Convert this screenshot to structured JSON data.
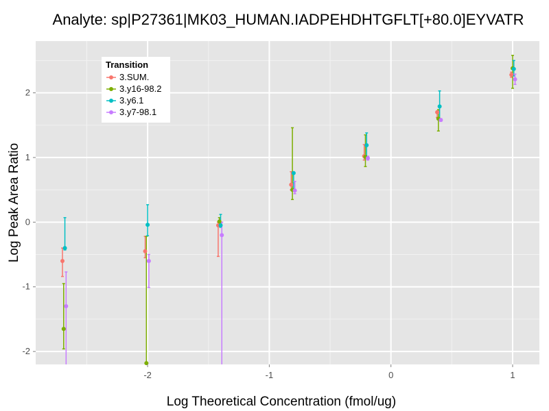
{
  "chart_data": {
    "type": "scatter",
    "title": "Analyte: sp|P27361|MK03_HUMAN.IADPEHDHTGFLT[+80.0]EYVATR",
    "xlabel": "Log Theoretical Concentration (fmol/ug)",
    "ylabel": "Log Peak Area Ratio",
    "xlim": [
      -2.92,
      1.22
    ],
    "ylim": [
      -2.2,
      2.8
    ],
    "x_ticks": [
      -2,
      -1,
      0,
      1
    ],
    "x_tick_labels": [
      "-2",
      "-1",
      "0",
      "1"
    ],
    "y_ticks": [
      -2,
      -1,
      0,
      1,
      2
    ],
    "y_tick_labels": [
      "-2",
      "-1",
      "0",
      "1",
      "2"
    ],
    "grid": true,
    "legend": {
      "title": "Transition",
      "position": "top-left"
    },
    "series": [
      {
        "name": "3.SUM.",
        "color": "#F8766D",
        "points": [
          {
            "x": -2.7,
            "y": -0.6,
            "ymin": -0.84,
            "ymax": -0.4
          },
          {
            "x": -2.02,
            "y": -0.45,
            "ymin": -0.55,
            "ymax": -0.22
          },
          {
            "x": -1.42,
            "y": -0.05,
            "ymin": -0.53,
            "ymax": 0.0
          },
          {
            "x": -0.82,
            "y": 0.58,
            "ymin": 0.5,
            "ymax": 0.78
          },
          {
            "x": -0.22,
            "y": 1.02,
            "ymin": 0.96,
            "ymax": 1.2
          },
          {
            "x": 0.38,
            "y": 1.7,
            "ymin": 1.62,
            "ymax": 1.72
          },
          {
            "x": 0.99,
            "y": 2.28,
            "ymin": 2.24,
            "ymax": 2.32
          }
        ]
      },
      {
        "name": "3.y16-98.2",
        "color": "#7CAE00",
        "points": [
          {
            "x": -2.69,
            "y": -1.65,
            "ymin": -1.96,
            "ymax": -0.95
          },
          {
            "x": -2.01,
            "y": -2.18,
            "ymin": -2.2,
            "ymax": -0.22
          },
          {
            "x": -1.41,
            "y": 0.01,
            "ymin": -0.04,
            "ymax": 0.07
          },
          {
            "x": -0.81,
            "y": 0.5,
            "ymin": 0.35,
            "ymax": 1.46
          },
          {
            "x": -0.21,
            "y": 1.01,
            "ymin": 0.86,
            "ymax": 1.35
          },
          {
            "x": 0.39,
            "y": 1.6,
            "ymin": 1.41,
            "ymax": 1.74
          },
          {
            "x": 1.0,
            "y": 2.38,
            "ymin": 2.07,
            "ymax": 2.58
          }
        ]
      },
      {
        "name": "3.y6.1",
        "color": "#00BFC4",
        "points": [
          {
            "x": -2.68,
            "y": -0.4,
            "ymin": -0.43,
            "ymax": 0.07
          },
          {
            "x": -2.0,
            "y": -0.04,
            "ymin": -0.21,
            "ymax": 0.27
          },
          {
            "x": -1.4,
            "y": -0.05,
            "ymin": -0.08,
            "ymax": 0.12
          },
          {
            "x": -0.8,
            "y": 0.76,
            "ymin": 0.48,
            "ymax": 0.77
          },
          {
            "x": -0.2,
            "y": 1.19,
            "ymin": 0.99,
            "ymax": 1.38
          },
          {
            "x": 0.4,
            "y": 1.79,
            "ymin": 1.59,
            "ymax": 2.03
          },
          {
            "x": 1.01,
            "y": 2.37,
            "ymin": 2.26,
            "ymax": 2.5
          }
        ]
      },
      {
        "name": "3.y7-98.1",
        "color": "#C77CFF",
        "points": [
          {
            "x": -2.67,
            "y": -1.3,
            "ymin": -2.2,
            "ymax": -0.77
          },
          {
            "x": -1.99,
            "y": -0.6,
            "ymin": -1.01,
            "ymax": -0.5
          },
          {
            "x": -1.39,
            "y": -0.2,
            "ymin": -2.2,
            "ymax": 0.0
          },
          {
            "x": -0.79,
            "y": 0.49,
            "ymin": 0.44,
            "ymax": 0.63
          },
          {
            "x": -0.19,
            "y": 0.99,
            "ymin": 0.96,
            "ymax": 1.02
          },
          {
            "x": 0.41,
            "y": 1.58,
            "ymin": 1.56,
            "ymax": 1.6
          },
          {
            "x": 1.02,
            "y": 2.21,
            "ymin": 2.13,
            "ymax": 2.29
          }
        ]
      }
    ]
  }
}
